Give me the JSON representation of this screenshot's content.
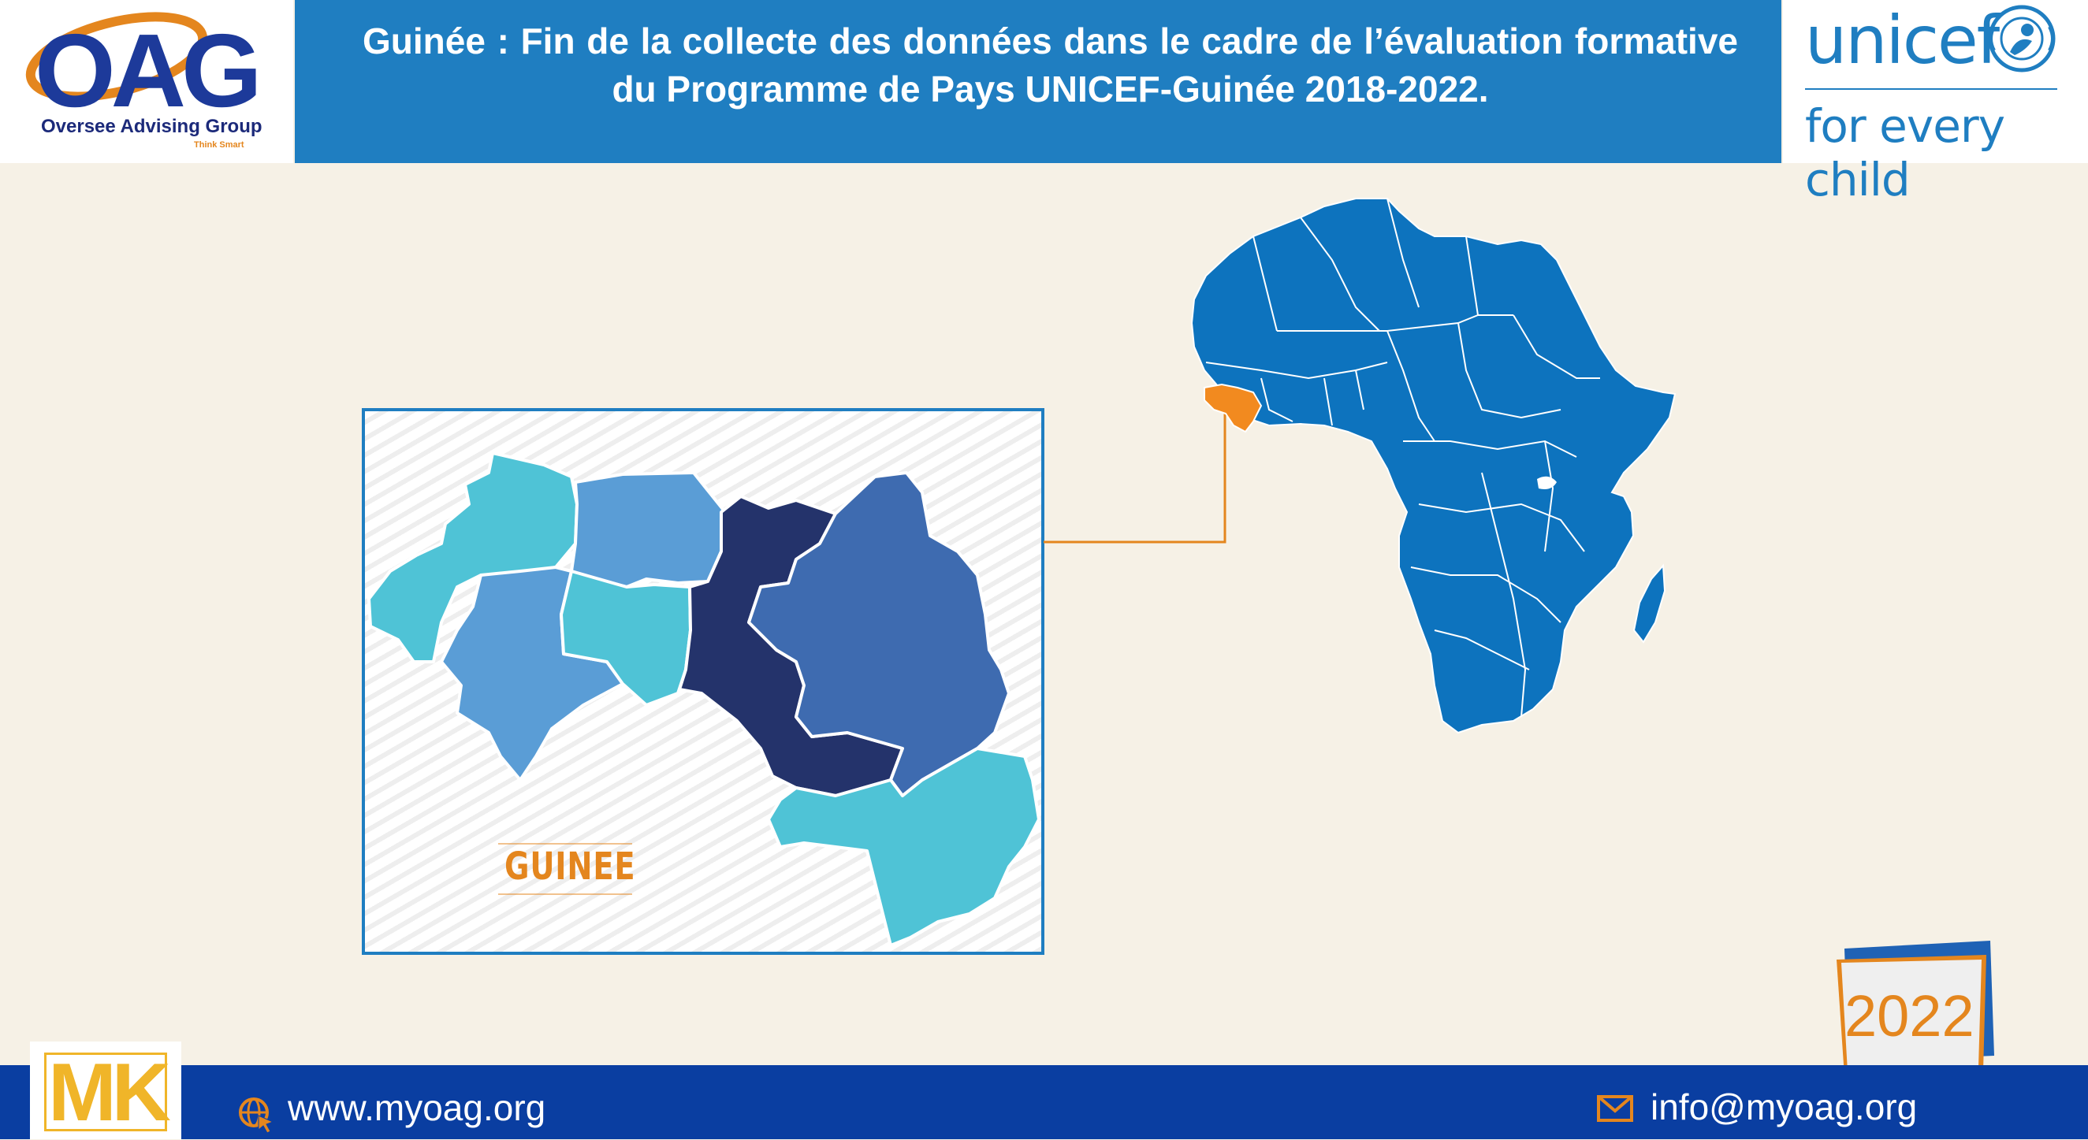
{
  "header": {
    "logo_text": "OAG",
    "logo_subtitle": "Oversee Advising Group",
    "logo_tagline": "Think Smart",
    "title": "Guinée : Fin de la collecte des données dans le cadre de l’évaluation formative du Programme de Pays UNICEF-Guinée 2018-2022.",
    "partner_logo_word": "unicef",
    "partner_tagline": "for every child"
  },
  "map": {
    "country_label": "GUINEE",
    "highlight_color": "#f28a1f",
    "continent_color": "#0d73be",
    "region_colors": [
      "#4fc3d6",
      "#5a9dd6",
      "#3e6bb0",
      "#24336b"
    ]
  },
  "badge": {
    "year": "2022",
    "corner_logo": "MK"
  },
  "footer": {
    "website": "www.myoag.org",
    "email": "info@myoag.org",
    "website_icon": "globe-cursor-icon",
    "email_icon": "envelope-icon"
  }
}
